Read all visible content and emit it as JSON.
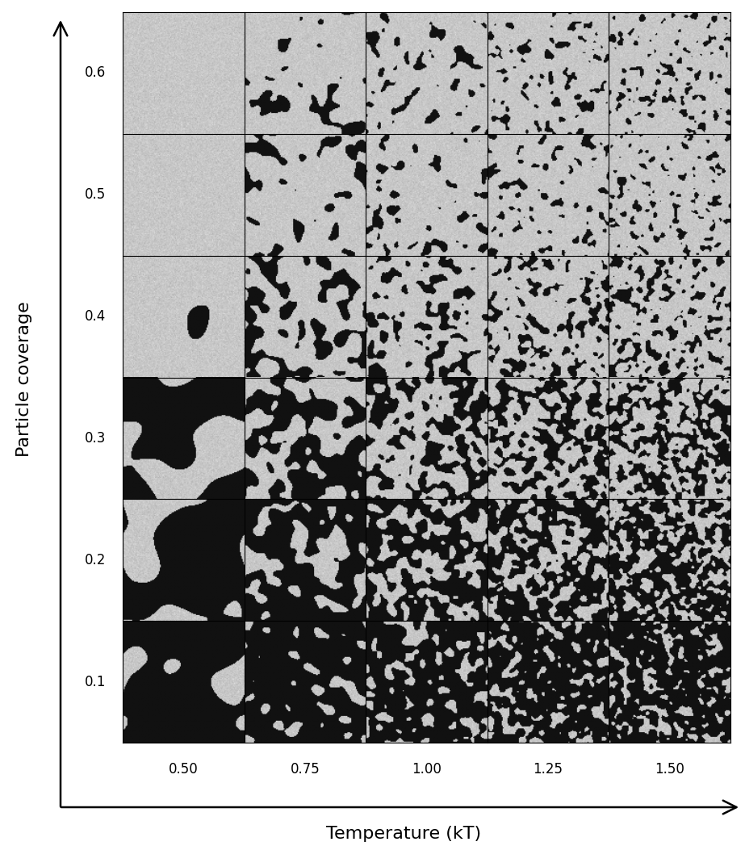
{
  "chart_data": {
    "type": "image_grid",
    "x_label": "Temperature (kT)",
    "y_label": "Particle coverage",
    "x_categories": [
      "0.50",
      "0.75",
      "1.00",
      "1.25",
      "1.50"
    ],
    "y_categories": [
      "0.1",
      "0.2",
      "0.3",
      "0.4",
      "0.5",
      "0.6"
    ]
  }
}
